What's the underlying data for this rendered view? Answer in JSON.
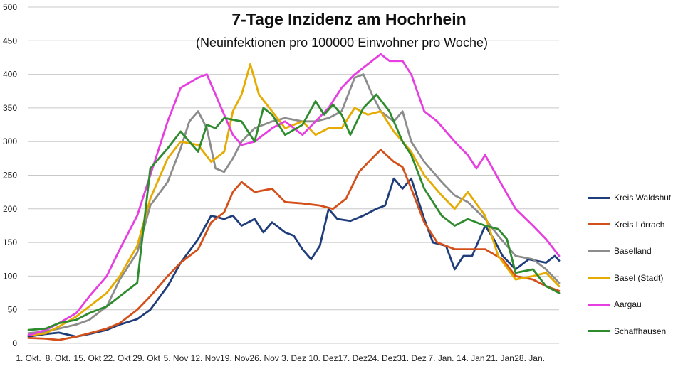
{
  "chart_data": {
    "type": "line",
    "title": "7-Tage Inzidenz am Hochrhein",
    "subtitle": "(Neuinfektionen pro 100000 Einwohner pro Woche)",
    "xlabel": "",
    "ylabel": "",
    "ylim": [
      0,
      500
    ],
    "yticks": [
      "0",
      "50",
      "100",
      "150",
      "200",
      "250",
      "300",
      "350",
      "400",
      "450",
      "500"
    ],
    "xtick_labels": [
      "1. Okt.",
      "8. Okt.",
      "15. Okt",
      "22. Okt",
      "29. Okt",
      "5. Nov",
      "12. Nov",
      "19. Nov",
      "26. Nov",
      "3. Dez",
      "10. Dez",
      "17. Dez",
      "24. Dez",
      "31. Dez",
      "7. Jan.",
      "14. Jan",
      "21. Jan",
      "28. Jan."
    ],
    "grid": true,
    "legend_position": "right",
    "x_start": "2020-10-01",
    "x_end": "2021-01-31",
    "series": [
      {
        "name": "Kreis Waldshut",
        "color": "#1f3d7a",
        "points": [
          [
            "2020-10-01",
            10
          ],
          [
            "2020-10-05",
            14
          ],
          [
            "2020-10-08",
            16
          ],
          [
            "2020-10-12",
            10
          ],
          [
            "2020-10-15",
            14
          ],
          [
            "2020-10-19",
            20
          ],
          [
            "2020-10-22",
            28
          ],
          [
            "2020-10-26",
            36
          ],
          [
            "2020-10-29",
            50
          ],
          [
            "2020-11-02",
            85
          ],
          [
            "2020-11-05",
            120
          ],
          [
            "2020-11-09",
            155
          ],
          [
            "2020-11-12",
            190
          ],
          [
            "2020-11-15",
            185
          ],
          [
            "2020-11-17",
            190
          ],
          [
            "2020-11-19",
            175
          ],
          [
            "2020-11-22",
            185
          ],
          [
            "2020-11-24",
            165
          ],
          [
            "2020-11-26",
            180
          ],
          [
            "2020-11-29",
            165
          ],
          [
            "2020-12-01",
            160
          ],
          [
            "2020-12-03",
            140
          ],
          [
            "2020-12-05",
            125
          ],
          [
            "2020-12-07",
            145
          ],
          [
            "2020-12-09",
            200
          ],
          [
            "2020-12-11",
            185
          ],
          [
            "2020-12-14",
            182
          ],
          [
            "2020-12-17",
            190
          ],
          [
            "2020-12-20",
            200
          ],
          [
            "2020-12-22",
            205
          ],
          [
            "2020-12-24",
            245
          ],
          [
            "2020-12-26",
            230
          ],
          [
            "2020-12-28",
            245
          ],
          [
            "2020-12-31",
            185
          ],
          [
            "2021-01-02",
            150
          ],
          [
            "2021-01-05",
            145
          ],
          [
            "2021-01-07",
            110
          ],
          [
            "2021-01-09",
            130
          ],
          [
            "2021-01-11",
            130
          ],
          [
            "2021-01-14",
            175
          ],
          [
            "2021-01-16",
            155
          ],
          [
            "2021-01-18",
            130
          ],
          [
            "2021-01-21",
            110
          ],
          [
            "2021-01-24",
            125
          ],
          [
            "2021-01-28",
            120
          ],
          [
            "2021-01-30",
            130
          ],
          [
            "2021-01-31",
            123
          ]
        ]
      },
      {
        "name": "Kreis Lörrach",
        "color": "#d4501a",
        "points": [
          [
            "2020-10-01",
            8
          ],
          [
            "2020-10-05",
            7
          ],
          [
            "2020-10-08",
            5
          ],
          [
            "2020-10-12",
            10
          ],
          [
            "2020-10-15",
            15
          ],
          [
            "2020-10-19",
            22
          ],
          [
            "2020-10-22",
            30
          ],
          [
            "2020-10-26",
            50
          ],
          [
            "2020-10-29",
            70
          ],
          [
            "2020-11-02",
            100
          ],
          [
            "2020-11-05",
            120
          ],
          [
            "2020-11-09",
            140
          ],
          [
            "2020-11-12",
            180
          ],
          [
            "2020-11-15",
            195
          ],
          [
            "2020-11-17",
            225
          ],
          [
            "2020-11-19",
            240
          ],
          [
            "2020-11-22",
            225
          ],
          [
            "2020-11-26",
            230
          ],
          [
            "2020-11-29",
            210
          ],
          [
            "2020-12-03",
            208
          ],
          [
            "2020-12-07",
            205
          ],
          [
            "2020-12-10",
            200
          ],
          [
            "2020-12-13",
            215
          ],
          [
            "2020-12-16",
            255
          ],
          [
            "2020-12-19",
            275
          ],
          [
            "2020-12-21",
            288
          ],
          [
            "2020-12-24",
            270
          ],
          [
            "2020-12-26",
            262
          ],
          [
            "2020-12-28",
            230
          ],
          [
            "2020-12-31",
            180
          ],
          [
            "2021-01-03",
            150
          ],
          [
            "2021-01-07",
            140
          ],
          [
            "2021-01-10",
            140
          ],
          [
            "2021-01-14",
            140
          ],
          [
            "2021-01-18",
            125
          ],
          [
            "2021-01-21",
            100
          ],
          [
            "2021-01-25",
            95
          ],
          [
            "2021-01-28",
            85
          ],
          [
            "2021-01-31",
            78
          ]
        ]
      },
      {
        "name": "Baselland",
        "color": "#8c8c8c",
        "points": [
          [
            "2020-10-01",
            15
          ],
          [
            "2020-10-05",
            18
          ],
          [
            "2020-10-08",
            22
          ],
          [
            "2020-10-12",
            28
          ],
          [
            "2020-10-15",
            35
          ],
          [
            "2020-10-19",
            55
          ],
          [
            "2020-10-22",
            95
          ],
          [
            "2020-10-26",
            135
          ],
          [
            "2020-10-29",
            205
          ],
          [
            "2020-11-02",
            240
          ],
          [
            "2020-11-05",
            290
          ],
          [
            "2020-11-07",
            330
          ],
          [
            "2020-11-09",
            345
          ],
          [
            "2020-11-11",
            320
          ],
          [
            "2020-11-13",
            260
          ],
          [
            "2020-11-15",
            255
          ],
          [
            "2020-11-17",
            275
          ],
          [
            "2020-11-19",
            300
          ],
          [
            "2020-11-22",
            320
          ],
          [
            "2020-11-26",
            330
          ],
          [
            "2020-11-29",
            335
          ],
          [
            "2020-12-03",
            330
          ],
          [
            "2020-12-06",
            330
          ],
          [
            "2020-12-09",
            335
          ],
          [
            "2020-12-12",
            345
          ],
          [
            "2020-12-15",
            395
          ],
          [
            "2020-12-17",
            400
          ],
          [
            "2020-12-19",
            370
          ],
          [
            "2020-12-21",
            345
          ],
          [
            "2020-12-24",
            330
          ],
          [
            "2020-12-26",
            345
          ],
          [
            "2020-12-28",
            300
          ],
          [
            "2020-12-31",
            270
          ],
          [
            "2021-01-04",
            240
          ],
          [
            "2021-01-07",
            220
          ],
          [
            "2021-01-10",
            210
          ],
          [
            "2021-01-14",
            185
          ],
          [
            "2021-01-17",
            160
          ],
          [
            "2021-01-21",
            130
          ],
          [
            "2021-01-25",
            125
          ],
          [
            "2021-01-28",
            110
          ],
          [
            "2021-01-31",
            90
          ]
        ]
      },
      {
        "name": "Basel (Stadt)",
        "color": "#e6ab00",
        "points": [
          [
            "2020-10-01",
            12
          ],
          [
            "2020-10-05",
            15
          ],
          [
            "2020-10-08",
            25
          ],
          [
            "2020-10-12",
            40
          ],
          [
            "2020-10-15",
            55
          ],
          [
            "2020-10-19",
            75
          ],
          [
            "2020-10-22",
            100
          ],
          [
            "2020-10-26",
            145
          ],
          [
            "2020-10-29",
            215
          ],
          [
            "2020-11-02",
            275
          ],
          [
            "2020-11-05",
            300
          ],
          [
            "2020-11-09",
            295
          ],
          [
            "2020-11-12",
            270
          ],
          [
            "2020-11-15",
            285
          ],
          [
            "2020-11-17",
            345
          ],
          [
            "2020-11-19",
            370
          ],
          [
            "2020-11-21",
            415
          ],
          [
            "2020-11-23",
            370
          ],
          [
            "2020-11-26",
            345
          ],
          [
            "2020-11-29",
            320
          ],
          [
            "2020-12-03",
            330
          ],
          [
            "2020-12-06",
            310
          ],
          [
            "2020-12-09",
            320
          ],
          [
            "2020-12-12",
            320
          ],
          [
            "2020-12-15",
            350
          ],
          [
            "2020-12-18",
            340
          ],
          [
            "2020-12-21",
            345
          ],
          [
            "2020-12-24",
            315
          ],
          [
            "2020-12-28",
            285
          ],
          [
            "2020-12-31",
            250
          ],
          [
            "2021-01-04",
            220
          ],
          [
            "2021-01-07",
            200
          ],
          [
            "2021-01-10",
            225
          ],
          [
            "2021-01-14",
            190
          ],
          [
            "2021-01-17",
            130
          ],
          [
            "2021-01-21",
            95
          ],
          [
            "2021-01-25",
            100
          ],
          [
            "2021-01-28",
            105
          ],
          [
            "2021-01-31",
            85
          ]
        ]
      },
      {
        "name": "Aargau",
        "color": "#e63ee0",
        "points": [
          [
            "2020-10-01",
            12
          ],
          [
            "2020-10-05",
            20
          ],
          [
            "2020-10-08",
            30
          ],
          [
            "2020-10-12",
            45
          ],
          [
            "2020-10-15",
            70
          ],
          [
            "2020-10-19",
            100
          ],
          [
            "2020-10-22",
            140
          ],
          [
            "2020-10-26",
            190
          ],
          [
            "2020-10-29",
            250
          ],
          [
            "2020-11-02",
            330
          ],
          [
            "2020-11-05",
            380
          ],
          [
            "2020-11-09",
            395
          ],
          [
            "2020-11-11",
            400
          ],
          [
            "2020-11-13",
            370
          ],
          [
            "2020-11-15",
            340
          ],
          [
            "2020-11-17",
            310
          ],
          [
            "2020-11-19",
            295
          ],
          [
            "2020-11-22",
            300
          ],
          [
            "2020-11-26",
            320
          ],
          [
            "2020-11-29",
            330
          ],
          [
            "2020-12-03",
            310
          ],
          [
            "2020-12-06",
            330
          ],
          [
            "2020-12-09",
            350
          ],
          [
            "2020-12-12",
            380
          ],
          [
            "2020-12-15",
            400
          ],
          [
            "2020-12-18",
            415
          ],
          [
            "2020-12-21",
            430
          ],
          [
            "2020-12-23",
            420
          ],
          [
            "2020-12-26",
            420
          ],
          [
            "2020-12-28",
            400
          ],
          [
            "2020-12-31",
            345
          ],
          [
            "2021-01-03",
            330
          ],
          [
            "2021-01-07",
            300
          ],
          [
            "2021-01-10",
            280
          ],
          [
            "2021-01-12",
            260
          ],
          [
            "2021-01-14",
            280
          ],
          [
            "2021-01-17",
            245
          ],
          [
            "2021-01-21",
            200
          ],
          [
            "2021-01-25",
            175
          ],
          [
            "2021-01-28",
            155
          ],
          [
            "2021-01-31",
            130
          ]
        ]
      },
      {
        "name": "Schaffhausen",
        "color": "#2e8b2e",
        "points": [
          [
            "2020-10-01",
            20
          ],
          [
            "2020-10-05",
            22
          ],
          [
            "2020-10-08",
            30
          ],
          [
            "2020-10-12",
            35
          ],
          [
            "2020-10-15",
            45
          ],
          [
            "2020-10-19",
            55
          ],
          [
            "2020-10-22",
            70
          ],
          [
            "2020-10-26",
            90
          ],
          [
            "2020-10-29",
            260
          ],
          [
            "2020-11-02",
            290
          ],
          [
            "2020-11-05",
            315
          ],
          [
            "2020-11-07",
            300
          ],
          [
            "2020-11-09",
            285
          ],
          [
            "2020-11-11",
            325
          ],
          [
            "2020-11-13",
            320
          ],
          [
            "2020-11-15",
            335
          ],
          [
            "2020-11-19",
            330
          ],
          [
            "2020-11-22",
            300
          ],
          [
            "2020-11-24",
            350
          ],
          [
            "2020-11-26",
            340
          ],
          [
            "2020-11-29",
            310
          ],
          [
            "2020-12-03",
            325
          ],
          [
            "2020-12-06",
            360
          ],
          [
            "2020-12-08",
            340
          ],
          [
            "2020-12-10",
            355
          ],
          [
            "2020-12-12",
            340
          ],
          [
            "2020-12-14",
            310
          ],
          [
            "2020-12-17",
            350
          ],
          [
            "2020-12-20",
            370
          ],
          [
            "2020-12-23",
            345
          ],
          [
            "2020-12-26",
            300
          ],
          [
            "2020-12-28",
            280
          ],
          [
            "2020-12-31",
            230
          ],
          [
            "2021-01-04",
            190
          ],
          [
            "2021-01-07",
            175
          ],
          [
            "2021-01-10",
            185
          ],
          [
            "2021-01-14",
            175
          ],
          [
            "2021-01-17",
            170
          ],
          [
            "2021-01-19",
            155
          ],
          [
            "2021-01-21",
            105
          ],
          [
            "2021-01-25",
            110
          ],
          [
            "2021-01-28",
            85
          ],
          [
            "2021-01-31",
            75
          ]
        ]
      }
    ]
  }
}
